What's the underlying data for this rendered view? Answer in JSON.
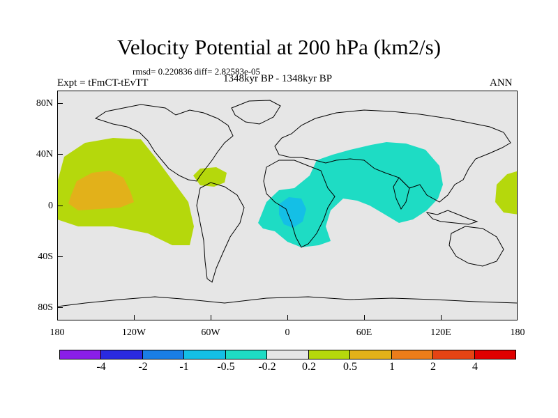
{
  "title": "Velocity Potential at 200 hPa (km2/s)",
  "rmsd_line": "rmsd= 0.220836 diff= 2.82583e-05",
  "left_label": "Expt = tFmCT-tEvTT",
  "center_label": "1348kyr BP - 1348kyr BP",
  "right_label": "ANN",
  "map": {
    "projection": "cylindrical equidistant",
    "lon_range": [
      -180,
      180
    ],
    "lat_range": [
      -90,
      90
    ],
    "background_color": "#e6e6e6",
    "coastline_color": "#000000",
    "y_ticks": [
      "80N",
      "40N",
      "0",
      "40S",
      "80S"
    ],
    "x_ticks": [
      "180",
      "120W",
      "60W",
      "0",
      "60E",
      "120E",
      "180"
    ]
  },
  "colorbar": {
    "colors": [
      "#8a1ee8",
      "#2a2ae0",
      "#1a7ee6",
      "#14bfe6",
      "#1edcc4",
      "#e6e6e6",
      "#b5d80c",
      "#e2b11a",
      "#ec7d1a",
      "#e64414",
      "#e00000"
    ],
    "labels": [
      "-4",
      "-2",
      "-1",
      "-0.5",
      "-0.2",
      "0.2",
      "0.5",
      "1",
      "2",
      "4"
    ]
  },
  "regions": [
    {
      "name": "central-pacific-positive",
      "range": "0.2 to 0.5",
      "color": "#b5d80c"
    },
    {
      "name": "central-pacific-core",
      "range": "0.5 to 1",
      "color": "#e2b11a"
    },
    {
      "name": "caribbean-positive",
      "range": "0.2 to 0.5",
      "color": "#b5d80c"
    },
    {
      "name": "west-pacific-positive",
      "range": "0.2 to 0.5",
      "color": "#b5d80c"
    },
    {
      "name": "africa-asia-negative",
      "range": "-0.5 to -0.2",
      "color": "#1edcc4"
    },
    {
      "name": "congo-negative-core",
      "range": "-1 to -0.5",
      "color": "#14bfe6"
    }
  ]
}
